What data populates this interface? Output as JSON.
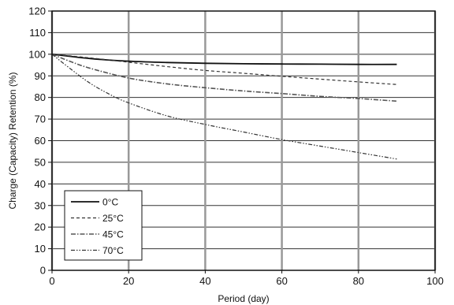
{
  "chart_data": {
    "type": "line",
    "title": "",
    "xlabel": "Period (day)",
    "ylabel": "Charge (Capacity) Retention (%)",
    "xlim": [
      0,
      100
    ],
    "ylim": [
      0,
      120
    ],
    "xticks": [
      "0",
      "20",
      "40",
      "60",
      "80",
      "100"
    ],
    "yticks": [
      "0",
      "10",
      "20",
      "30",
      "40",
      "50",
      "60",
      "70",
      "80",
      "90",
      "100",
      "110",
      "120"
    ],
    "grid": true,
    "legend_position": "bottom-left",
    "series": [
      {
        "name": "0°C",
        "dash": "solid",
        "color": "#111111",
        "x": [
          0,
          10,
          20,
          30,
          40,
          50,
          60,
          70,
          80,
          90
        ],
        "y": [
          100,
          98,
          96.8,
          96.2,
          95.8,
          95.6,
          95.5,
          95.4,
          95.3,
          95.3
        ]
      },
      {
        "name": "25°C",
        "dash": "dashed",
        "color": "#333333",
        "x": [
          0,
          10,
          20,
          30,
          40,
          50,
          60,
          70,
          80,
          90
        ],
        "y": [
          100,
          98.3,
          96.3,
          94.3,
          92.5,
          91.2,
          89.8,
          88.5,
          87.2,
          86
        ]
      },
      {
        "name": "45°C",
        "dash": "dashdot",
        "color": "#555555",
        "x": [
          0,
          5,
          10,
          20,
          30,
          40,
          50,
          60,
          70,
          80,
          90
        ],
        "y": [
          100,
          96.5,
          93.5,
          89,
          86.3,
          84.5,
          83,
          81.8,
          80.5,
          79.5,
          78.3
        ]
      },
      {
        "name": "70°C",
        "dash": "dashdotdot",
        "color": "#333333",
        "x": [
          0,
          5,
          10,
          15,
          20,
          30,
          40,
          50,
          60,
          70,
          80,
          90
        ],
        "y": [
          100,
          93,
          86.5,
          81.5,
          77.5,
          71.5,
          67.5,
          64,
          60.5,
          57.5,
          54.5,
          51.5
        ]
      }
    ]
  }
}
